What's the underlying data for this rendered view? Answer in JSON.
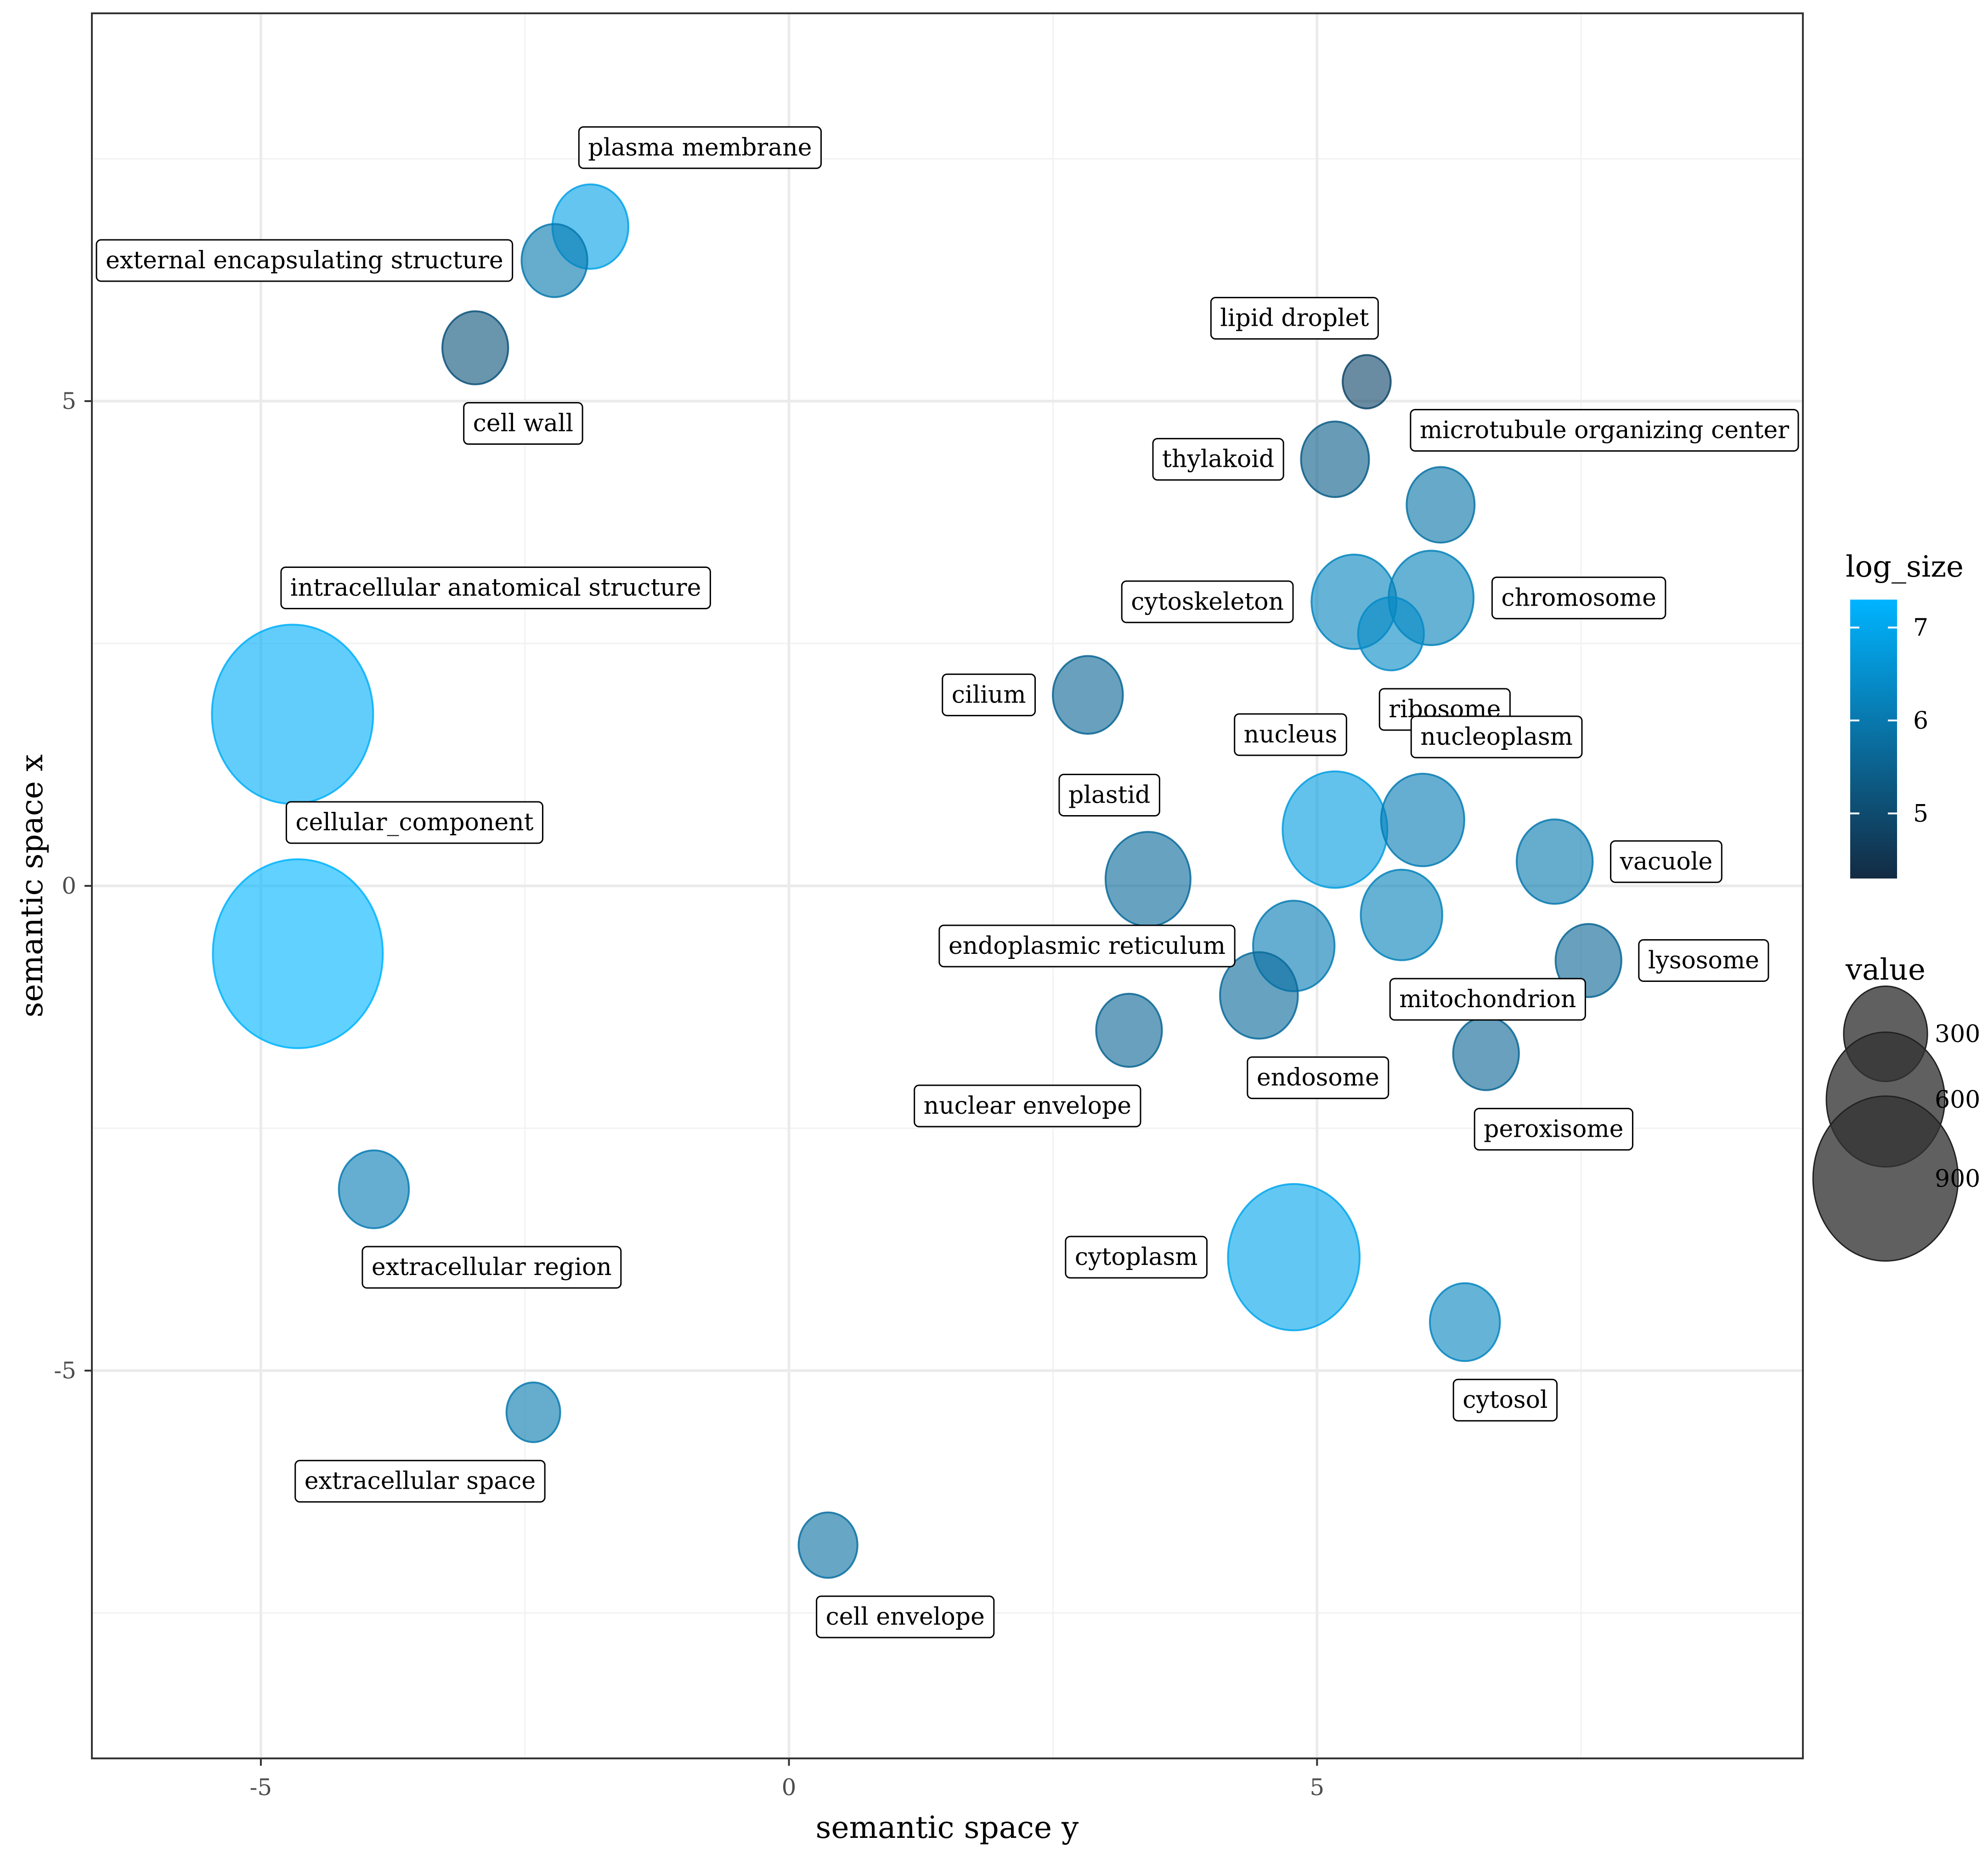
{
  "chart_data": {
    "type": "scatter",
    "title": "",
    "xlabel": "semantic space y",
    "ylabel": "semantic space x",
    "xlim": [
      -6.6,
      9.6
    ],
    "ylim": [
      -9.0,
      9.0
    ],
    "x_ticks": [
      -5,
      0,
      5
    ],
    "y_ticks": [
      5,
      0,
      -5
    ],
    "x_tick_labels": [
      "-5",
      "0",
      "5"
    ],
    "y_tick_labels": [
      "5",
      "0",
      "-5"
    ],
    "grid": true,
    "color_legend": {
      "title": "log_size",
      "range": [
        4.3,
        7.3
      ],
      "ticks": [
        5,
        6,
        7
      ],
      "tick_labels": [
        "5",
        "6",
        "7"
      ],
      "low_color": "#132b43",
      "high_color": "#00b4ff"
    },
    "size_legend": {
      "title": "value",
      "entries": [
        {
          "value": 300,
          "label": "300"
        },
        {
          "value": 600,
          "label": "600"
        },
        {
          "value": 900,
          "label": "900"
        }
      ]
    },
    "points": [
      {
        "label": "plasma membrane",
        "x": -1.88,
        "y": 6.8,
        "log_size": 6.9,
        "value": 200,
        "label_pos": "above-right"
      },
      {
        "label": "external encapsulating structure",
        "x": -2.22,
        "y": 6.45,
        "log_size": 6.0,
        "value": 150,
        "label_pos": "left"
      },
      {
        "label": "cell wall",
        "x": -2.97,
        "y": 5.55,
        "log_size": 5.2,
        "value": 150,
        "label_pos": "below-right"
      },
      {
        "label": "lipid droplet",
        "x": 5.47,
        "y": 5.2,
        "log_size": 4.9,
        "value": 80,
        "label_pos": "above-left"
      },
      {
        "label": "thylakoid",
        "x": 5.17,
        "y": 4.4,
        "log_size": 5.4,
        "value": 160,
        "label_pos": "left"
      },
      {
        "label": "microtubule organizing center",
        "x": 6.17,
        "y": 3.93,
        "log_size": 5.9,
        "value": 160,
        "label_pos": "above-right"
      },
      {
        "label": "cytoskeleton",
        "x": 5.35,
        "y": 2.93,
        "log_size": 6.3,
        "value": 250,
        "label_pos": "left"
      },
      {
        "label": "chromosome",
        "x": 6.08,
        "y": 2.97,
        "log_size": 6.2,
        "value": 250,
        "label_pos": "right"
      },
      {
        "label": "ribosome",
        "x": 5.7,
        "y": 2.6,
        "log_size": 6.4,
        "value": 150,
        "label_pos": "below-right"
      },
      {
        "label": "cilium",
        "x": 2.83,
        "y": 1.97,
        "log_size": 5.6,
        "value": 170,
        "label_pos": "left"
      },
      {
        "label": "intracellular anatomical structure",
        "x": -4.7,
        "y": 1.77,
        "log_size": 7.2,
        "value": 900,
        "label_pos": "above-right"
      },
      {
        "label": "nucleus",
        "x": 5.17,
        "y": 0.58,
        "log_size": 6.8,
        "value": 380,
        "label_pos": "above-left"
      },
      {
        "label": "nucleoplasm",
        "x": 6.0,
        "y": 0.68,
        "log_size": 6.1,
        "value": 240,
        "label_pos": "above-right"
      },
      {
        "label": "plastid",
        "x": 3.4,
        "y": 0.07,
        "log_size": 5.7,
        "value": 250,
        "label_pos": "above-left"
      },
      {
        "label": "vacuole",
        "x": 7.25,
        "y": 0.25,
        "log_size": 6.0,
        "value": 200,
        "label_pos": "right"
      },
      {
        "label": "cellular_component",
        "x": -4.65,
        "y": -0.7,
        "log_size": 7.3,
        "value": 1000,
        "label_pos": "above-right"
      },
      {
        "label": "mitochondrion",
        "x": 5.8,
        "y": -0.3,
        "log_size": 6.2,
        "value": 230,
        "label_pos": "below-right"
      },
      {
        "label": "endoplasmic reticulum",
        "x": 4.78,
        "y": -0.62,
        "log_size": 6.1,
        "value": 230,
        "label_pos": "left"
      },
      {
        "label": "lysosome",
        "x": 7.57,
        "y": -0.77,
        "log_size": 5.6,
        "value": 150,
        "label_pos": "right"
      },
      {
        "label": "endosome",
        "x": 4.45,
        "y": -1.13,
        "log_size": 5.7,
        "value": 210,
        "label_pos": "below-right"
      },
      {
        "label": "nuclear envelope",
        "x": 3.22,
        "y": -1.49,
        "log_size": 5.6,
        "value": 150,
        "label_pos": "below-left"
      },
      {
        "label": "peroxisome",
        "x": 6.6,
        "y": -1.73,
        "log_size": 5.6,
        "value": 150,
        "label_pos": "below-right"
      },
      {
        "label": "extracellular region",
        "x": -3.93,
        "y": -3.13,
        "log_size": 6.1,
        "value": 170,
        "label_pos": "below-right"
      },
      {
        "label": "cytoplasm",
        "x": 4.78,
        "y": -3.83,
        "log_size": 7.0,
        "value": 600,
        "label_pos": "left"
      },
      {
        "label": "cytosol",
        "x": 6.4,
        "y": -4.5,
        "log_size": 6.3,
        "value": 170,
        "label_pos": "below-right"
      },
      {
        "label": "extracellular space",
        "x": -2.42,
        "y": -5.43,
        "log_size": 6.0,
        "value": 100,
        "label_pos": "below-left"
      },
      {
        "label": "cell envelope",
        "x": 0.37,
        "y": -6.8,
        "log_size": 5.8,
        "value": 120,
        "label_pos": "below-right"
      }
    ]
  }
}
